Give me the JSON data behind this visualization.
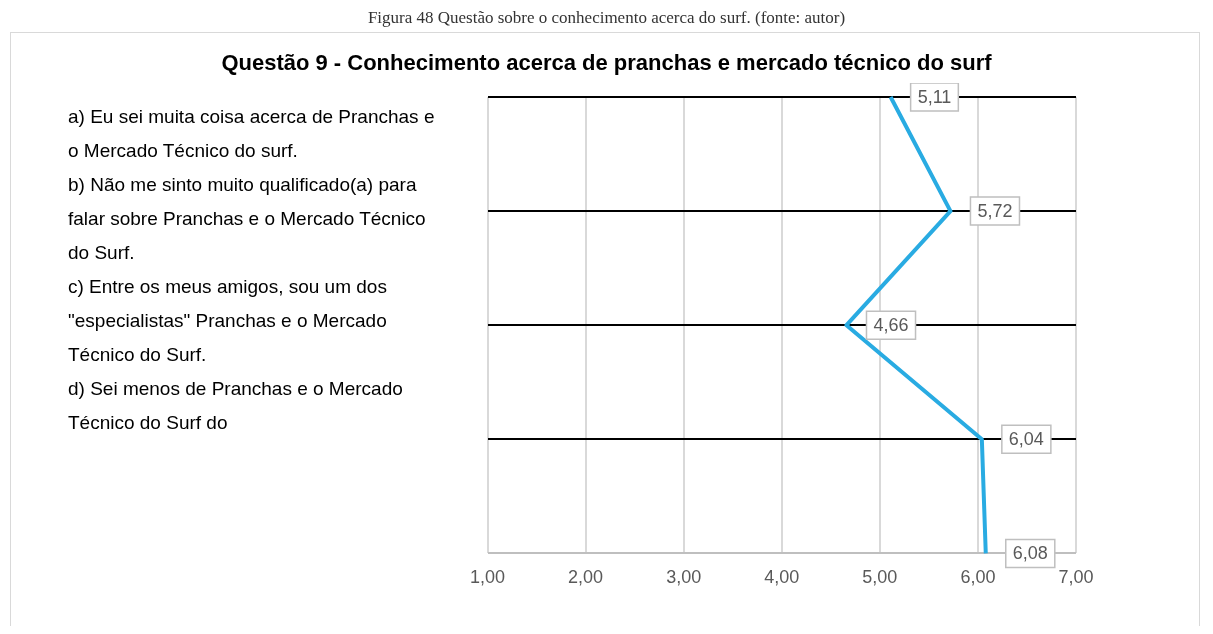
{
  "chart_data": {
    "type": "line",
    "orientation": "horizontal",
    "title": "Questão 9 - Conhecimento acerca de pranchas e mercado técnico do surf",
    "annotations": [
      "Figura 48 Questão sobre o conhecimento acerca do surf. (fonte: autor)",
      "a)  Eu sei muita coisa acerca de Pranchas e o Mercado Técnico do surf.",
      "b) Não me sinto muito qualificado(a) para falar sobre Pranchas e o Mercado Técnico do Surf.",
      "c) Entre os meus amigos, sou um dos \"especialistas\" Pranchas e o Mercado Técnico do Surf.",
      "d) Sei menos de Pranchas e o Mercado Técnico do Surf do"
    ],
    "categories": [
      null,
      null,
      null,
      null,
      null
    ],
    "series": [
      {
        "color": "#29abe2",
        "values": [
          5.11,
          5.72,
          4.66,
          6.04,
          6.08
        ]
      }
    ],
    "xlim": [
      1,
      7
    ],
    "xticks": [
      {
        "value": 1,
        "label": "1,00"
      },
      {
        "value": 2,
        "label": "2,00"
      },
      {
        "value": 3,
        "label": "3,00"
      },
      {
        "value": 4,
        "label": "4,00"
      },
      {
        "value": 5,
        "label": "5,00"
      },
      {
        "value": 6,
        "label": "6,00"
      },
      {
        "value": 7,
        "label": "7,00"
      }
    ],
    "value_labels": [
      "5,11",
      "5,72",
      "4,66",
      "6,04",
      "6,08"
    ],
    "grid": true,
    "legend": false,
    "marker": "none",
    "line_style": "solid"
  }
}
